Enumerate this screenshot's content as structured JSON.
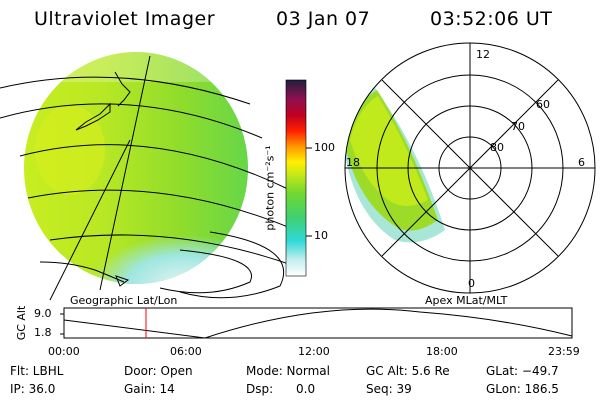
{
  "header": {
    "instrument": "Ultraviolet Imager",
    "date": "03 Jan 07",
    "time": "03:52:06 UT"
  },
  "colorbar": {
    "unit_label": "photon cm⁻²s⁻¹",
    "tick_labels": [
      "100",
      "10"
    ],
    "scale": "log"
  },
  "geo_panel": {
    "label": "Geographic Lat/Lon"
  },
  "polar_panel": {
    "label": "Apex MLat/MLT",
    "mlt_labels": [
      "12",
      "18",
      "6",
      "0"
    ],
    "lat_labels": [
      "60",
      "70",
      "80"
    ]
  },
  "altitude_strip": {
    "axis_label": "GC Alt",
    "y_ticks": [
      "9.0",
      "1.8"
    ],
    "x_ticks": [
      "00:00",
      "06:00",
      "12:00",
      "18:00",
      "23:59"
    ],
    "current_time_marker": "03:52:06",
    "marker_color": "#ff0000"
  },
  "info": {
    "filter": "Flt: LBHL",
    "ip": "IP: 36.0",
    "door": "Door: Open",
    "gain": "Gain: 14",
    "mode": "Mode: Normal",
    "dsp": "Dsp:      0.0",
    "gc_alt": "GC Alt: 5.6 Re",
    "seq": "Seq: 39",
    "glat": "GLat: −49.7",
    "glon": "GLon: 186.5"
  }
}
